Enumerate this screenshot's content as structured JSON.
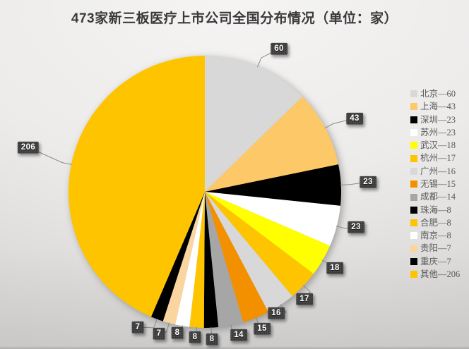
{
  "chart_data": {
    "type": "pie",
    "title": "473家新三板医疗上市公司全国分布情况（单位：家）",
    "unit": "家",
    "total": 473,
    "start_angle_deg": 0,
    "direction": "clockwise",
    "legend_position": "right",
    "label_box_color": "#3B3B3B",
    "label_text_color": "#FFFFFF",
    "leader_line_color": "#8A8A8A",
    "series": [
      {
        "name": "北京",
        "value": 60,
        "color": "#D8D8D8"
      },
      {
        "name": "上海",
        "value": 43,
        "color": "#FDC868"
      },
      {
        "name": "深圳",
        "value": 23,
        "color": "#000000"
      },
      {
        "name": "苏州",
        "value": 23,
        "color": "#FFFFFF"
      },
      {
        "name": "武汉",
        "value": 18,
        "color": "#FFFF00"
      },
      {
        "name": "杭州",
        "value": 17,
        "color": "#FFC400"
      },
      {
        "name": "广州",
        "value": 16,
        "color": "#D8D8D8"
      },
      {
        "name": "无锡",
        "value": 15,
        "color": "#F39000"
      },
      {
        "name": "成都",
        "value": 14,
        "color": "#A6A6A6"
      },
      {
        "name": "珠海",
        "value": 8,
        "color": "#000000"
      },
      {
        "name": "合肥",
        "value": 8,
        "color": "#FFC400"
      },
      {
        "name": "南京",
        "value": 8,
        "color": "#FFFFFF"
      },
      {
        "name": "贵阳",
        "value": 7,
        "color": "#FBD5A0"
      },
      {
        "name": "重庆",
        "value": 7,
        "color": "#000000"
      },
      {
        "name": "其他",
        "value": 206,
        "color": "#FFC400"
      }
    ],
    "legend_entries": [
      "北京—60",
      "上海—43",
      "深圳—23",
      "苏州—23",
      "武汉—18",
      "杭州—17",
      "广州—16",
      "无锡—15",
      "成都—14",
      "珠海—8",
      "合肥—8",
      "南京—8",
      "贵阳—7",
      "重庆—7",
      "其他—206"
    ],
    "data_labels": [
      "60",
      "43",
      "23",
      "23",
      "18",
      "17",
      "16",
      "15",
      "14",
      "8",
      "8",
      "8",
      "7",
      "7",
      "206"
    ]
  }
}
